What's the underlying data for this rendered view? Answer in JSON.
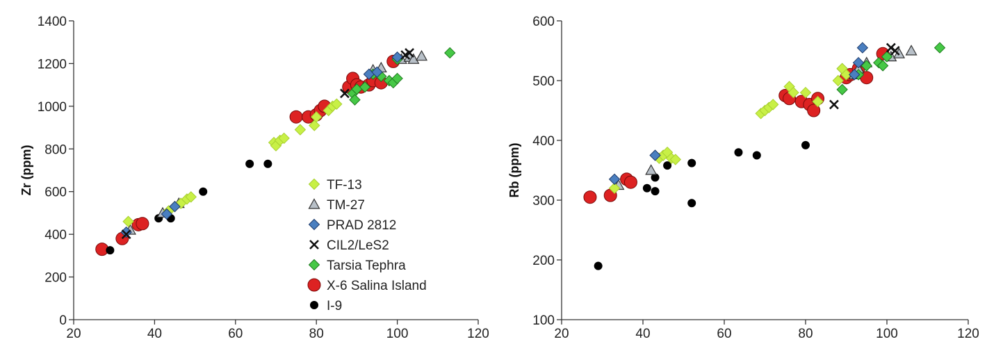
{
  "legend": [
    {
      "key": "TF-13",
      "label": "TF-13",
      "marker": "diamond",
      "color": "#c8f046",
      "edge": "#a8d030"
    },
    {
      "key": "TM-27",
      "label": "TM-27",
      "marker": "triangle",
      "color": "#b8c0c8",
      "edge": "#333333"
    },
    {
      "key": "PRAD",
      "label": "PRAD 2812",
      "marker": "diamond",
      "color": "#4a7fc0",
      "edge": "#1e3a6a"
    },
    {
      "key": "CIL2",
      "label": "CIL2/LeS2",
      "marker": "cross",
      "color": "#111111",
      "edge": "#111111"
    },
    {
      "key": "Tarsia",
      "label": "Tarsia Tephra",
      "marker": "diamond",
      "color": "#46c846",
      "edge": "#1e7a1e"
    },
    {
      "key": "X6",
      "label": "X-6 Salina Island",
      "marker": "circle-large",
      "color": "#dd2222",
      "edge": "#7a0a0a"
    },
    {
      "key": "I9",
      "label": "I-9",
      "marker": "circle-small",
      "color": "#000000",
      "edge": "#000000"
    }
  ],
  "chart_data": [
    {
      "type": "scatter",
      "ylabel": "Zr (ppm)",
      "xlabel": "",
      "xlim": [
        20,
        120
      ],
      "ylim": [
        0,
        1400
      ],
      "xticks": [
        "20",
        "40",
        "60",
        "80",
        "100",
        "120"
      ],
      "yticks": [
        "0",
        "200",
        "400",
        "600",
        "800",
        "1000",
        "1200",
        "1400"
      ],
      "legend_position": "inside-lower-right",
      "series": [
        {
          "name": "TF-13",
          "points": [
            [
              33.5,
              460
            ],
            [
              43.5,
              510
            ],
            [
              45,
              530
            ],
            [
              46.5,
              545
            ],
            [
              48,
              565
            ],
            [
              49,
              575
            ],
            [
              69.5,
              830
            ],
            [
              70,
              815
            ],
            [
              71,
              840
            ],
            [
              72,
              850
            ],
            [
              76,
              890
            ],
            [
              79.5,
              910
            ],
            [
              80,
              950
            ],
            [
              83,
              980
            ],
            [
              84,
              1000
            ],
            [
              85,
              1010
            ]
          ]
        },
        {
          "name": "TM-27",
          "points": [
            [
              34,
              420
            ],
            [
              42,
              500
            ],
            [
              46,
              545
            ],
            [
              94,
              1170
            ],
            [
              96,
              1180
            ],
            [
              101,
              1220
            ],
            [
              103,
              1230
            ],
            [
              104,
              1220
            ],
            [
              106,
              1235
            ]
          ]
        },
        {
          "name": "PRAD 2812",
          "points": [
            [
              33,
              410
            ],
            [
              43,
              495
            ],
            [
              45,
              530
            ],
            [
              93,
              1150
            ],
            [
              95,
              1160
            ],
            [
              100,
              1230
            ]
          ]
        },
        {
          "name": "CIL2/LeS2",
          "points": [
            [
              33,
              400
            ],
            [
              87,
              1060
            ],
            [
              102,
              1240
            ],
            [
              103,
              1250
            ]
          ]
        },
        {
          "name": "Tarsia Tephra",
          "points": [
            [
              89,
              1060
            ],
            [
              89.5,
              1030
            ],
            [
              90,
              1080
            ],
            [
              92,
              1090
            ],
            [
              94,
              1150
            ],
            [
              96,
              1140
            ],
            [
              98,
              1120
            ],
            [
              99,
              1110
            ],
            [
              100,
              1130
            ],
            [
              100,
              1220
            ],
            [
              113,
              1250
            ]
          ]
        },
        {
          "name": "X-6 Salina Island",
          "points": [
            [
              27,
              330
            ],
            [
              32,
              380
            ],
            [
              36,
              445
            ],
            [
              37,
              450
            ],
            [
              75,
              950
            ],
            [
              78,
              950
            ],
            [
              80,
              960
            ],
            [
              81,
              980
            ],
            [
              82,
              1000
            ],
            [
              88,
              1090
            ],
            [
              89,
              1130
            ],
            [
              90,
              1100
            ],
            [
              91,
              1090
            ],
            [
              93,
              1100
            ],
            [
              94,
              1120
            ],
            [
              96,
              1110
            ],
            [
              99,
              1210
            ]
          ]
        },
        {
          "name": "I-9",
          "points": [
            [
              29,
              325
            ],
            [
              41,
              475
            ],
            [
              44,
              475
            ],
            [
              52,
              600
            ],
            [
              63.5,
              730
            ],
            [
              68,
              730
            ]
          ]
        }
      ]
    },
    {
      "type": "scatter",
      "ylabel": "Rb (ppm)",
      "xlabel": "",
      "xlim": [
        20,
        120
      ],
      "ylim": [
        100,
        600
      ],
      "xticks": [
        "20",
        "40",
        "60",
        "80",
        "100",
        "120"
      ],
      "yticks": [
        "100",
        "200",
        "300",
        "400",
        "500",
        "600"
      ],
      "series": [
        {
          "name": "TF-13",
          "points": [
            [
              33,
              320
            ],
            [
              44,
              370
            ],
            [
              45,
              375
            ],
            [
              46,
              380
            ],
            [
              47,
              370
            ],
            [
              48,
              368
            ],
            [
              69,
              445
            ],
            [
              70,
              450
            ],
            [
              71,
              455
            ],
            [
              72,
              460
            ],
            [
              76,
              490
            ],
            [
              77,
              480
            ],
            [
              80,
              480
            ],
            [
              83,
              465
            ],
            [
              88,
              500
            ],
            [
              89,
              520
            ],
            [
              90,
              510
            ]
          ]
        },
        {
          "name": "TM-27",
          "points": [
            [
              34,
              325
            ],
            [
              42,
              350
            ],
            [
              92,
              510
            ],
            [
              93,
              520
            ],
            [
              95,
              530
            ],
            [
              101,
              540
            ],
            [
              103,
              545
            ],
            [
              106,
              550
            ]
          ]
        },
        {
          "name": "PRAD 2812",
          "points": [
            [
              33,
              335
            ],
            [
              43,
              375
            ],
            [
              92,
              510
            ],
            [
              93,
              530
            ],
            [
              94,
              555
            ]
          ]
        },
        {
          "name": "CIL2/LeS2",
          "points": [
            [
              87,
              460
            ],
            [
              101,
              555
            ],
            [
              102,
              550
            ]
          ]
        },
        {
          "name": "Tarsia Tephra",
          "points": [
            [
              89,
              485
            ],
            [
              89,
              520
            ],
            [
              93,
              510
            ],
            [
              95,
              525
            ],
            [
              98,
              530
            ],
            [
              99,
              525
            ],
            [
              100,
              540
            ],
            [
              113,
              555
            ]
          ]
        },
        {
          "name": "X-6 Salina Island",
          "points": [
            [
              27,
              305
            ],
            [
              32,
              308
            ],
            [
              36,
              335
            ],
            [
              37,
              330
            ],
            [
              75,
              475
            ],
            [
              76,
              470
            ],
            [
              79,
              465
            ],
            [
              81,
              460
            ],
            [
              82,
              450
            ],
            [
              83,
              470
            ],
            [
              90,
              505
            ],
            [
              91,
              510
            ],
            [
              93,
              520
            ],
            [
              95,
              505
            ],
            [
              99,
              545
            ]
          ]
        },
        {
          "name": "I-9",
          "points": [
            [
              29,
              190
            ],
            [
              41,
              320
            ],
            [
              43,
              338
            ],
            [
              43,
              315
            ],
            [
              46,
              358
            ],
            [
              52,
              362
            ],
            [
              52,
              295
            ],
            [
              63.5,
              380
            ],
            [
              68,
              375
            ],
            [
              80,
              392
            ]
          ]
        }
      ]
    }
  ]
}
